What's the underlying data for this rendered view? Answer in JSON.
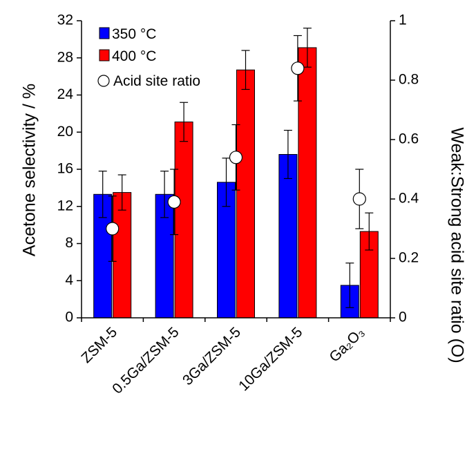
{
  "chart_data": {
    "type": "bar",
    "categories": [
      "ZSM-5",
      "0.5Ga/ZSM-5",
      "3Ga/ZSM-5",
      "10Ga/ZSM-5",
      "Ga₂O₃"
    ],
    "series": [
      {
        "name": "350 °C",
        "color": "#0000ff",
        "values": [
          13.3,
          13.3,
          14.6,
          17.6,
          3.5
        ],
        "error": [
          2.5,
          2.5,
          2.6,
          2.6,
          2.4
        ]
      },
      {
        "name": "400 °C",
        "color": "#ff0000",
        "values": [
          13.5,
          21.1,
          26.7,
          29.1,
          9.3
        ],
        "error": [
          1.9,
          2.1,
          2.1,
          2.1,
          2.0
        ]
      }
    ],
    "secondary_series": {
      "name": "Acid site ratio",
      "type": "scatter",
      "marker": "open-circle",
      "values": [
        0.3,
        0.39,
        0.54,
        0.84,
        0.4
      ],
      "error": [
        0.11,
        0.11,
        0.11,
        0.11,
        0.1
      ]
    },
    "ylabel": "Acetone selectivity / %",
    "ylim": [
      0,
      32
    ],
    "yticks": [
      0,
      4,
      8,
      12,
      16,
      20,
      24,
      28,
      32
    ],
    "y2label": "Weak:Strong acid site ratio (O)",
    "y2lim": [
      0,
      1
    ],
    "y2ticks": [
      "0",
      "0.2",
      "0.4",
      "0.6",
      "0.8",
      "1"
    ],
    "legend_placement": "top-left",
    "grid": false
  }
}
